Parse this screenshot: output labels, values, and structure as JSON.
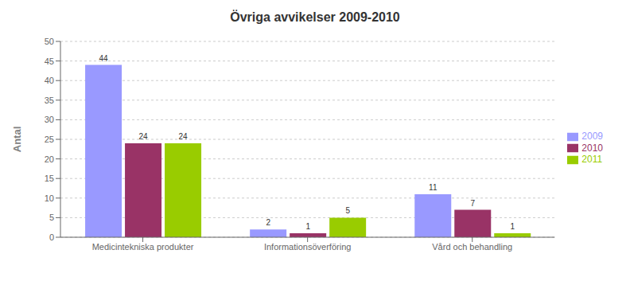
{
  "chart_data": {
    "type": "bar",
    "title": "Övriga avvikelser 2009-2010",
    "ylabel": "Antal",
    "categories": [
      "Medicintekniska produkter",
      "Informationsöverföring",
      "Vård och behandling"
    ],
    "series": [
      {
        "name": "2009",
        "color": "#9999FF",
        "values": [
          44,
          2,
          11
        ]
      },
      {
        "name": "2010",
        "color": "#993366",
        "values": [
          24,
          1,
          7
        ]
      },
      {
        "name": "2011",
        "color": "#99CC00",
        "values": [
          24,
          5,
          1
        ]
      }
    ],
    "ylim": [
      0,
      50
    ],
    "yticks": [
      0,
      5,
      10,
      15,
      20,
      25,
      30,
      35,
      40,
      45,
      50
    ],
    "grid": true,
    "legend": "right",
    "data_labels": true
  }
}
